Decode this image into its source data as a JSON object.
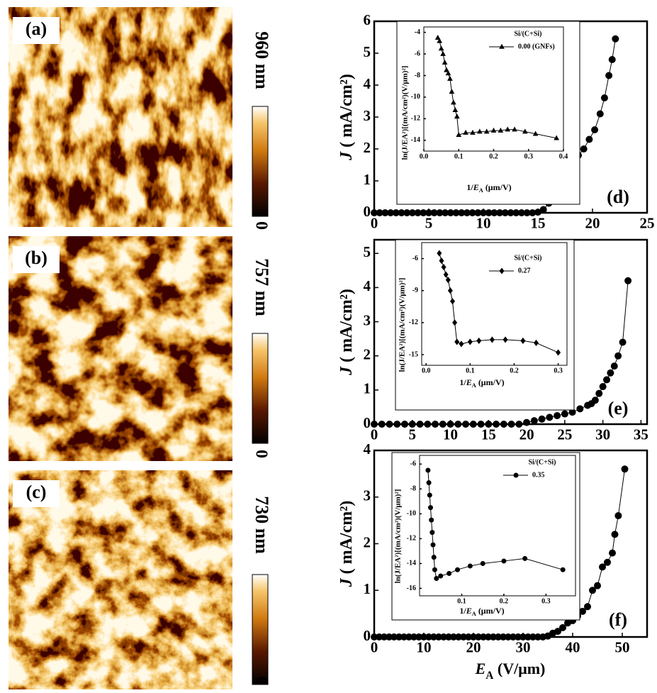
{
  "images": [
    {
      "label": "(a)",
      "scale_max": "960 nm",
      "scale_min": "0"
    },
    {
      "label": "(b)",
      "scale_max": "757 nm",
      "scale_min": "0"
    },
    {
      "label": "(c)",
      "scale_max": "730 nm",
      "scale_min": "0"
    }
  ],
  "chart_data": [
    {
      "type": "line",
      "label": "(d)",
      "marker": "circle",
      "color": "#000000",
      "ylabel": {
        "symbol": "J",
        "unit": " ( mA/cm²)"
      },
      "xlim": [
        0,
        25
      ],
      "ylim": [
        0,
        6
      ],
      "xticks": [
        0,
        5,
        10,
        15,
        20,
        25
      ],
      "yticks": [
        0,
        1,
        2,
        3,
        4,
        5,
        6
      ],
      "x": [
        0,
        0.5,
        1,
        1.5,
        2,
        2.5,
        3,
        3.5,
        4,
        4.5,
        5,
        5.5,
        6,
        6.5,
        7,
        7.5,
        8,
        8.5,
        9,
        9.5,
        10,
        10.5,
        11,
        11.5,
        12,
        12.5,
        13,
        13.5,
        14,
        14.5,
        15,
        15.5,
        16,
        16.5,
        17,
        17.5,
        17.8,
        18,
        18.3,
        18.7,
        19.2,
        19.7,
        20.2,
        20.7,
        21.1,
        21.5,
        21.8,
        22.1
      ],
      "values": [
        0,
        0,
        0,
        0,
        0,
        0,
        0,
        0,
        0,
        0,
        0,
        0,
        0,
        0,
        0,
        0,
        0,
        0,
        0,
        0,
        0,
        0,
        0,
        0,
        0,
        0,
        0,
        0,
        0,
        0,
        0.02,
        0.1,
        0.3,
        0.45,
        0.55,
        0.65,
        0.75,
        1.3,
        1.6,
        1.8,
        2.0,
        2.3,
        2.6,
        3.1,
        3.6,
        4.3,
        4.8,
        5.45
      ]
    },
    {
      "type": "line",
      "label": "(e)",
      "marker": "circle",
      "color": "#000000",
      "ylabel": {
        "symbol": "J",
        "unit": " ( mA/cm²)"
      },
      "xlim": [
        0,
        35.8
      ],
      "ylim": [
        0,
        5.4
      ],
      "xticks": [
        0,
        5,
        10,
        15,
        20,
        25,
        30,
        35
      ],
      "yticks": [
        0,
        1,
        2,
        3,
        4,
        5
      ],
      "x": [
        0,
        1,
        2,
        3,
        4,
        5,
        6,
        7,
        8,
        9,
        10,
        11,
        12,
        13,
        14,
        15,
        16,
        17,
        18,
        19,
        20,
        21,
        22,
        23,
        24,
        25,
        26,
        27,
        28,
        28.5,
        29,
        29.5,
        30,
        30.5,
        31,
        31.5,
        32,
        32.6,
        33.3
      ],
      "values": [
        0,
        0,
        0,
        0,
        0,
        0,
        0,
        0,
        0,
        0,
        0,
        0,
        0,
        0,
        0,
        0,
        0,
        0,
        0,
        0,
        0.05,
        0.1,
        0.15,
        0.2,
        0.25,
        0.3,
        0.35,
        0.45,
        0.55,
        0.6,
        0.7,
        0.9,
        1.1,
        1.3,
        1.5,
        1.7,
        2.0,
        2.4,
        4.2
      ]
    },
    {
      "type": "line",
      "label": "(f)",
      "marker": "circle",
      "color": "#000000",
      "ylabel": {
        "symbol": "J",
        "unit": " ( mA/cm²)"
      },
      "xlabel": {
        "symbol": "E",
        "subscript": "A",
        "unit": " (V/μm)"
      },
      "xlim": [
        0,
        55
      ],
      "ylim": [
        0,
        4
      ],
      "xticks": [
        0,
        10,
        20,
        30,
        40,
        50
      ],
      "yticks": [
        0,
        1,
        2,
        3,
        4
      ],
      "x": [
        0,
        1,
        2,
        3,
        4,
        5,
        6,
        7,
        8,
        9,
        10,
        11,
        12,
        13,
        14,
        15,
        16,
        17,
        18,
        19,
        20,
        21,
        22,
        23,
        24,
        25,
        26,
        27,
        28,
        29,
        30,
        31,
        32,
        33,
        34,
        35,
        36,
        37,
        38,
        39,
        40,
        41,
        42,
        43,
        44,
        45,
        46,
        47,
        48,
        48.5,
        49.2,
        50.5
      ],
      "values": [
        0,
        0,
        0,
        0,
        0,
        0,
        0,
        0,
        0,
        0,
        0,
        0,
        0,
        0,
        0,
        0,
        0,
        0,
        0,
        0,
        0,
        0,
        0,
        0,
        0,
        0,
        0,
        0,
        0,
        0,
        0,
        0,
        0,
        0,
        0,
        0.02,
        0.08,
        0.12,
        0.2,
        0.3,
        0.35,
        0.45,
        0.55,
        0.65,
        1.0,
        1.1,
        1.5,
        1.6,
        1.8,
        2.2,
        2.6,
        3.6
      ]
    },
    {
      "type": "line",
      "legend_title": "Si/(C+Si)",
      "ylabel": "ln(J/EA²)[(mA/cm²)(V/μm)²]",
      "xlabel": {
        "prefix": "1/",
        "symbol": "E",
        "subscript": "A",
        "unit": " (μm/V)"
      },
      "xlim": [
        0,
        0.4
      ],
      "ylim": [
        -15,
        -3.5
      ],
      "xticks": [
        {
          "value": 0,
          "label": "0.0"
        },
        0.1,
        0.2,
        0.3,
        0.4
      ],
      "yticks": [
        -4,
        -6,
        -8,
        -10,
        -12,
        -14
      ],
      "x": [
        0.04,
        0.045,
        0.05,
        0.055,
        0.06,
        0.065,
        0.07,
        0.075,
        0.08,
        0.085,
        0.09,
        0.095,
        0.1,
        0.12,
        0.14,
        0.16,
        0.18,
        0.2,
        0.22,
        0.24,
        0.26,
        0.29,
        0.32,
        0.38
      ],
      "series": [
        {
          "name": "0.00 (GNFs)",
          "color": "#000000",
          "marker": "triangle",
          "values": [
            -4.5,
            -4.8,
            -5.5,
            -6,
            -6.8,
            -7.5,
            -7.8,
            -8.3,
            -9.5,
            -10.5,
            -11.2,
            -11.8,
            -13.5,
            -13.3,
            -13.3,
            -13.2,
            -13.2,
            -13.1,
            -13.1,
            -13.0,
            -13.0,
            -13.2,
            -13.4,
            -13.8
          ]
        }
      ]
    },
    {
      "type": "line",
      "legend_title": "Si/(C+Si)",
      "ylabel": "ln(J/EA²)[(mA/cm²)(V/μm)²]",
      "xlabel": {
        "prefix": "1/",
        "symbol": "E",
        "subscript": "A",
        "unit": " (μm/V)"
      },
      "xlim": [
        -0.01,
        0.32
      ],
      "ylim": [
        -16,
        -4.5
      ],
      "xticks": [
        {
          "value": 0,
          "label": "0.0"
        },
        0.1,
        0.2,
        0.3
      ],
      "yticks": [
        -6,
        -9,
        -12,
        -15
      ],
      "x": [
        0.03,
        0.035,
        0.04,
        0.045,
        0.05,
        0.055,
        0.06,
        0.065,
        0.07,
        0.08,
        0.1,
        0.12,
        0.15,
        0.18,
        0.22,
        0.25,
        0.3
      ],
      "series": [
        {
          "name": "0.27",
          "color": "#000000",
          "marker": "diamond",
          "values": [
            -5.5,
            -6.2,
            -6.8,
            -7.5,
            -8,
            -9,
            -10,
            -12,
            -13.8,
            -14,
            -13.8,
            -13.7,
            -13.6,
            -13.6,
            -13.7,
            -13.9,
            -14.8
          ]
        }
      ]
    },
    {
      "type": "line",
      "legend_title": "Si/(C+Si)",
      "ylabel": "ln(J/EA²)[(mA/cm²)(V/μm)²]",
      "xlabel": {
        "prefix": "1/",
        "symbol": "E",
        "subscript": "A",
        "unit": " (μm/V)"
      },
      "xlim": [
        0,
        0.37
      ],
      "ylim": [
        -16.6,
        -5.3
      ],
      "xticks": [
        0.1,
        0.2,
        0.3
      ],
      "yticks": [
        -6,
        -8,
        -10,
        -12,
        -14,
        -16
      ],
      "x": [
        0.02,
        0.022,
        0.024,
        0.026,
        0.028,
        0.03,
        0.032,
        0.034,
        0.036,
        0.04,
        0.05,
        0.07,
        0.09,
        0.12,
        0.15,
        0.2,
        0.25,
        0.34
      ],
      "series": [
        {
          "name": "0.35",
          "color": "#000000",
          "marker": "circle",
          "values": [
            -6.5,
            -7.5,
            -8.5,
            -9.5,
            -10.5,
            -11.5,
            -12.5,
            -13.5,
            -14.5,
            -15.2,
            -15,
            -14.8,
            -14.5,
            -14.2,
            -14,
            -13.8,
            -13.6,
            -14.5
          ]
        }
      ]
    }
  ]
}
